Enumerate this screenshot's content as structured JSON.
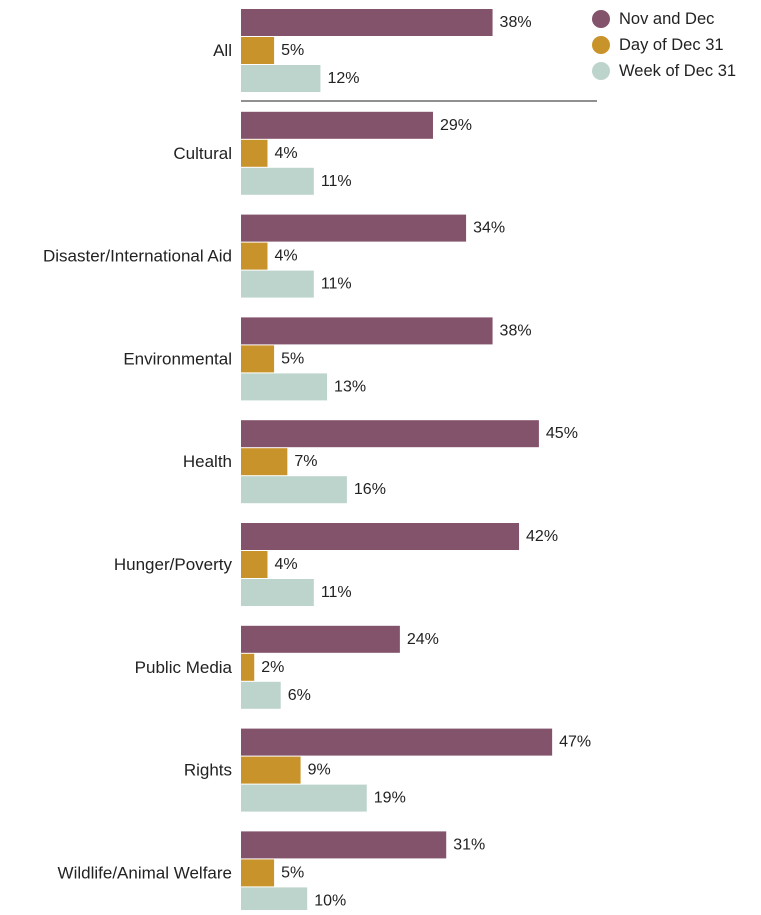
{
  "chart_data": {
    "type": "bar",
    "orientation": "horizontal",
    "categories": [
      "All",
      "Cultural",
      "Disaster/International Aid",
      "Environmental",
      "Health",
      "Hunger/Poverty",
      "Public Media",
      "Rights",
      "Wildlife/Animal Welfare"
    ],
    "series": [
      {
        "name": "Nov and Dec",
        "color": "#83526b",
        "values": [
          38,
          29,
          34,
          38,
          45,
          42,
          24,
          47,
          31
        ]
      },
      {
        "name": "Day of Dec 31",
        "color": "#c9932b",
        "values": [
          5,
          4,
          4,
          5,
          7,
          4,
          2,
          9,
          5
        ]
      },
      {
        "name": "Week of Dec 31",
        "color": "#bdd4cc",
        "values": [
          12,
          11,
          11,
          13,
          16,
          11,
          6,
          19,
          10
        ]
      }
    ],
    "value_suffix": "%",
    "legend_position": "top-right",
    "separator_after_first_group": true,
    "title": "",
    "xlabel": "",
    "ylabel": ""
  }
}
